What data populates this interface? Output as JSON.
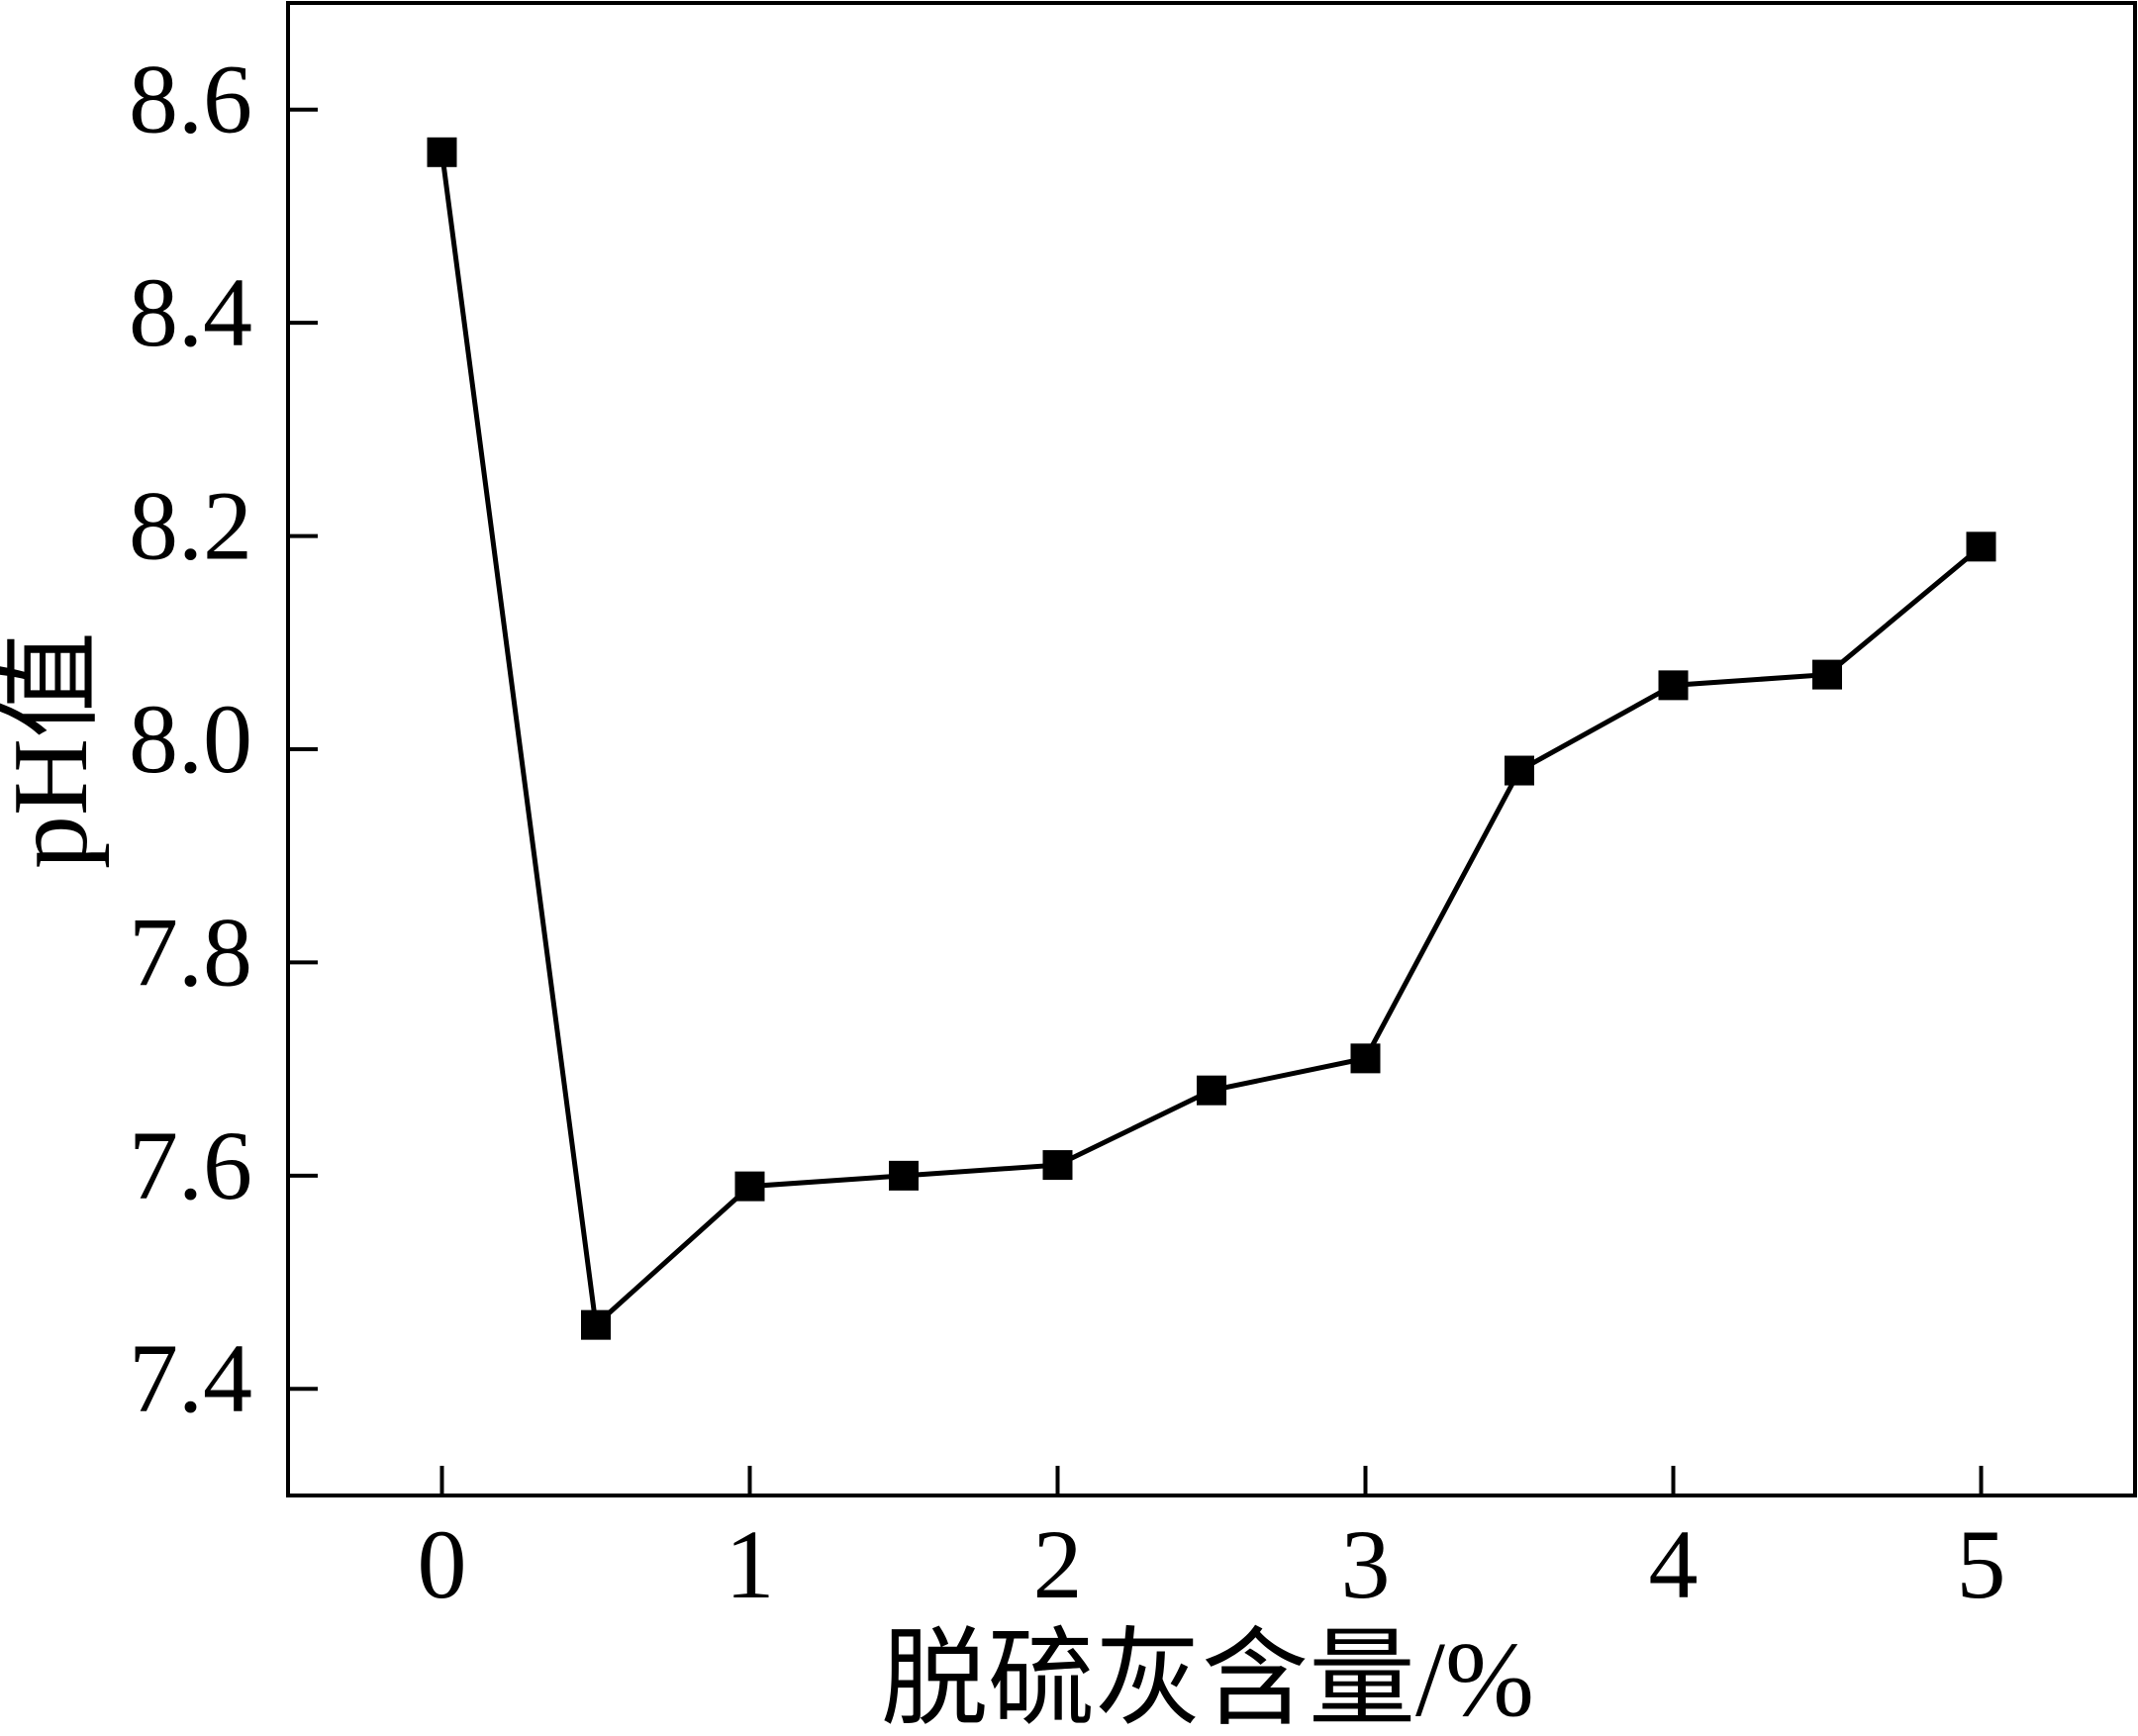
{
  "chart_data": {
    "type": "line",
    "x_label": "脱硫灰含量/%",
    "y_label": "pH值",
    "x": [
      0,
      0.5,
      1,
      1.5,
      2,
      2.5,
      3,
      3.5,
      4,
      4.5,
      5
    ],
    "series": [
      {
        "color": "#000000",
        "values": [
          8.56,
          7.46,
          7.59,
          7.6,
          7.61,
          7.68,
          7.71,
          7.98,
          8.06,
          8.07,
          8.19
        ]
      }
    ],
    "xlim": [
      -0.5,
      5.5
    ],
    "xticks": [
      0,
      1,
      2,
      3,
      4,
      5
    ],
    "ylim": [
      7.3,
      8.7
    ],
    "yticks": [
      7.4,
      7.6,
      7.8,
      {
        "value": 8,
        "label": "8.0"
      },
      8.2,
      8.4,
      8.6
    ],
    "marker": "square"
  }
}
